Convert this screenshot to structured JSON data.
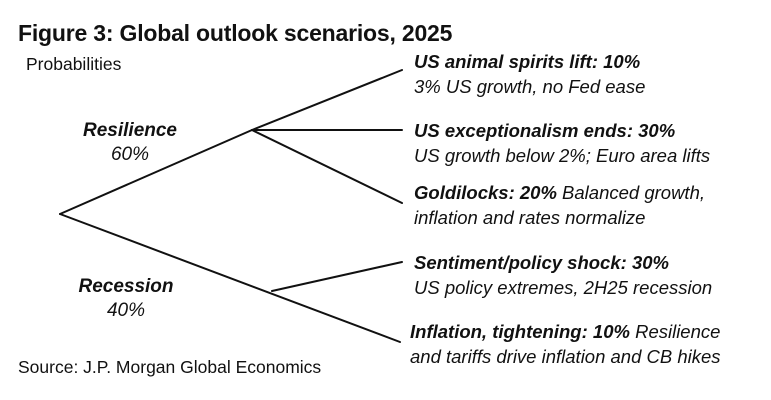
{
  "header": {
    "title": "Figure 3: Global outlook scenarios, 2025",
    "subtitle": "Probabilities"
  },
  "footer": {
    "source": "Source: J.P. Morgan Global Economics"
  },
  "line_color": "#111111",
  "branches": [
    {
      "name": "Resilience",
      "probability": "60%"
    },
    {
      "name": "Recession",
      "probability": "40%"
    }
  ],
  "scenarios": [
    {
      "head": "US animal spirits lift: 10%",
      "rest": "",
      "line2": "3% US growth, no Fed ease"
    },
    {
      "head": "US exceptionalism ends: 30%",
      "rest": "",
      "line2": "US growth below 2%; Euro area lifts"
    },
    {
      "head": "Goldilocks: 20%",
      "rest": " Balanced growth,",
      "line2": "inflation and rates normalize"
    },
    {
      "head": "Sentiment/policy shock",
      "rest": ": 30%",
      "line2": "US policy extremes, 2H25 recession"
    },
    {
      "head": "Inflation, tightening: 10%",
      "rest": " Resilience",
      "line2": "and tariffs drive inflation and CB hikes"
    }
  ]
}
